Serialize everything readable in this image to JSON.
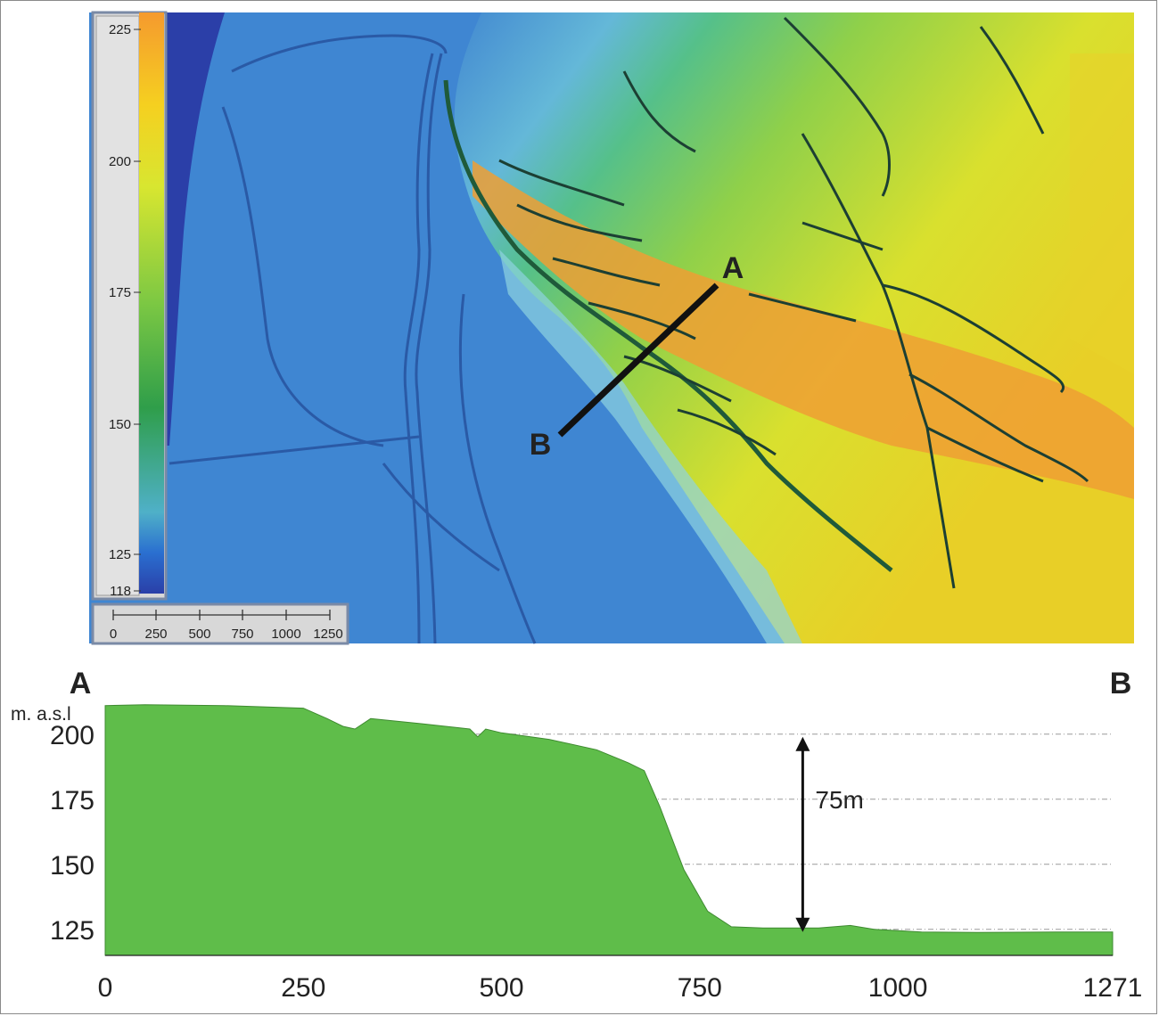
{
  "map": {
    "legend": {
      "ticks": [
        "225",
        "200",
        "175",
        "150",
        "125",
        "118"
      ],
      "colors": [
        "#f59a2e",
        "#f5d020",
        "#d8e630",
        "#7cc843",
        "#2f9e4a",
        "#4fb0c8",
        "#2a6fd0",
        "#2a3fa8"
      ]
    },
    "scalebar": {
      "ticks": [
        "0",
        "250",
        "500",
        "750",
        "1000",
        "1250"
      ]
    },
    "transect": {
      "label_a": "A",
      "label_b": "B"
    }
  },
  "profile": {
    "label_a": "A",
    "label_b": "B",
    "ylabel": "m. a.s.l",
    "annotation": "75m"
  },
  "chart_data": {
    "type": "area",
    "title": "",
    "xlabel": "",
    "ylabel": "m. a.s.l",
    "xlim": [
      0,
      1271
    ],
    "ylim": [
      115,
      215
    ],
    "x_ticks": [
      "0",
      "250",
      "500",
      "750",
      "1000",
      "1271"
    ],
    "y_ticks": [
      "125",
      "150",
      "175",
      "200"
    ],
    "grid": true,
    "fill_color": "#5fbd4a",
    "series": [
      {
        "x": [
          0,
          50,
          150,
          250,
          280,
          300,
          315,
          335,
          400,
          460,
          470,
          480,
          500,
          560,
          620,
          660,
          680,
          700,
          730,
          760,
          790,
          830,
          900,
          940,
          970,
          1030,
          1100,
          1200,
          1271
        ],
        "y": [
          211,
          211.3,
          211,
          210,
          206,
          203,
          202,
          206,
          204,
          202,
          199,
          202,
          200.5,
          198,
          194,
          189,
          186,
          172,
          148,
          132,
          126,
          125.5,
          125.5,
          126.5,
          125,
          124,
          123.8,
          124,
          124
        ]
      }
    ],
    "annotations": [
      {
        "text": "75m",
        "x": 880,
        "y_from": 124,
        "y_to": 199
      }
    ]
  }
}
